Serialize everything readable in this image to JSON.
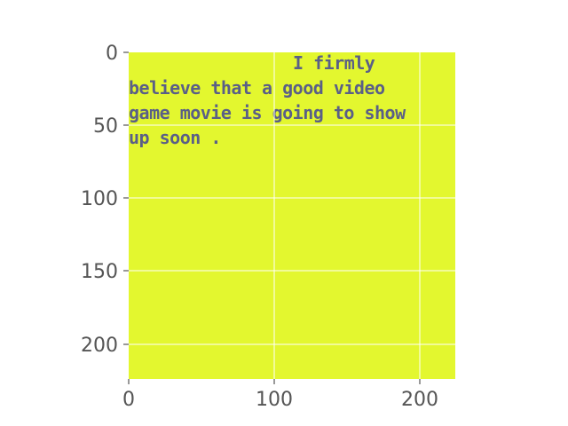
{
  "image": {
    "background_color": "#e3f72f",
    "text_color": "#5a5f87",
    "text_lines": [
      "I firmly",
      "believe that a good video",
      "game movie is going to show",
      "up soon ."
    ]
  },
  "axes": {
    "x_ticks": [
      "0",
      "100",
      "200"
    ],
    "y_ticks": [
      "0",
      "50",
      "100",
      "150",
      "200"
    ],
    "grid": true,
    "grid_color": "#ffffff",
    "tick_color": "#555555"
  }
}
